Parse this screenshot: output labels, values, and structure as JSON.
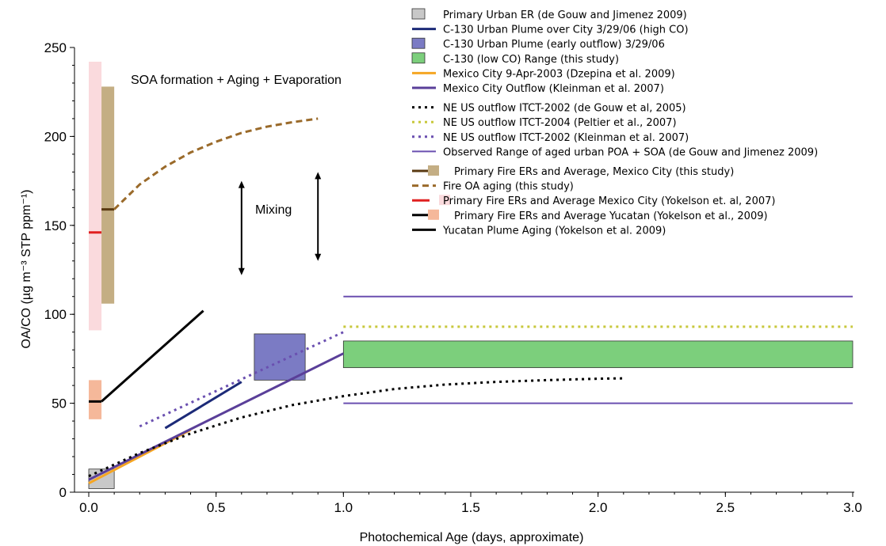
{
  "chart_data": {
    "type": "line",
    "xlabel": "Photochemical Age (days, approximate)",
    "ylabel": "OA/CO (µg m⁻³ STP ppm⁻¹)",
    "xlim": [
      0.0,
      3.0
    ],
    "ylim": [
      0,
      250
    ],
    "x_ticks": [
      "0.0",
      "0.5",
      "1.0",
      "1.5",
      "2.0",
      "2.5",
      "3.0"
    ],
    "y_ticks": [
      "0",
      "50",
      "100",
      "150",
      "200",
      "250"
    ],
    "annotations": {
      "soa": "SOA formation + Aging + Evaporation",
      "mixing": "Mixing"
    },
    "series": [
      {
        "id": "primary_urban_er",
        "name": "Primary Urban ER (de Gouw and Jimenez 2009)",
        "kind": "box",
        "x_range": [
          0.0,
          0.1
        ],
        "y_range": [
          2,
          13
        ],
        "color": "#c8c8c8"
      },
      {
        "id": "c130_over_city",
        "name": "C-130 Urban Plume  over City 3/29/06 (high CO)",
        "kind": "line",
        "x": [
          0.3,
          0.6
        ],
        "y": [
          36,
          62
        ],
        "color": "#1c2a78",
        "dash": "solid"
      },
      {
        "id": "c130_early_outflow",
        "name": "C-130 Urban Plume (early outflow) 3/29/06",
        "kind": "box",
        "x_range": [
          0.65,
          0.85
        ],
        "y_range": [
          63,
          89
        ],
        "color": "#7b7bc4"
      },
      {
        "id": "c130_low_co",
        "name": "C-130 (low CO) Range (this study)",
        "kind": "box",
        "x_range": [
          1.0,
          3.0
        ],
        "y_range": [
          70,
          85
        ],
        "color": "#7ccf7c"
      },
      {
        "id": "mexico_city_2003",
        "name": "Mexico City 9-Apr-2003 (Dzepina et al. 2009)",
        "kind": "line",
        "x": [
          0.0,
          0.4
        ],
        "y": [
          5,
          35
        ],
        "color": "#f5a623",
        "dash": "solid"
      },
      {
        "id": "mexico_city_outflow",
        "name": "Mexico City Outflow (Kleinman et al. 2007)",
        "kind": "line",
        "x": [
          0.0,
          1.0
        ],
        "y": [
          7,
          78
        ],
        "color": "#5a3f99",
        "dash": "solid"
      },
      {
        "id": "ne_us_2002_degouw",
        "name": "NE US outflow ITCT-2002 (de Gouw et al, 2005)",
        "kind": "line",
        "x": [
          0.0,
          0.2,
          0.4,
          0.6,
          0.8,
          1.0,
          1.2,
          1.4,
          1.6,
          1.8,
          2.0,
          2.1
        ],
        "y": [
          9,
          22,
          33,
          42,
          49,
          54,
          58,
          60.5,
          62,
          63,
          63.8,
          64
        ],
        "color": "#000000",
        "dash": "dotted"
      },
      {
        "id": "ne_us_2004_peltier",
        "name": "NE US outflow ITCT-2004 (Peltier et al., 2007)",
        "kind": "line",
        "x": [
          1.0,
          3.0
        ],
        "y": [
          93,
          93
        ],
        "color": "#c8c83c",
        "dash": "dotted"
      },
      {
        "id": "ne_us_2002_kleinman",
        "name": "NE US outflow ITCT-2002 (Kleinman et al. 2007)",
        "kind": "line",
        "x": [
          0.2,
          1.0
        ],
        "y": [
          37,
          90
        ],
        "color": "#6a4fb0",
        "dash": "dotted"
      },
      {
        "id": "aged_urban_range",
        "name": "Observed Range of aged urban POA + SOA (de Gouw and Jimenez 2009)",
        "kind": "range_lines",
        "x": [
          1.0,
          3.0
        ],
        "y": [
          50,
          110
        ],
        "color": "#6a4fb0"
      },
      {
        "id": "fire_er_mexico",
        "name": "Primary Fire ERs and Average, Mexico City (this study)",
        "kind": "box_avg",
        "x_range": [
          0.05,
          0.1
        ],
        "y_range": [
          106,
          228
        ],
        "avg": 159,
        "color": "#c4ae84",
        "avg_color": "#5a3a12"
      },
      {
        "id": "fire_oa_aging",
        "name": "Fire OA aging (this study)",
        "kind": "line",
        "x": [
          0.1,
          0.2,
          0.3,
          0.4,
          0.5,
          0.6,
          0.7,
          0.8,
          0.9
        ],
        "y": [
          159,
          173,
          183,
          191,
          197,
          202,
          205.5,
          208,
          210
        ],
        "color": "#9a6a2a",
        "dash": "dashed"
      },
      {
        "id": "fire_er_yokelson2007",
        "name": "Primary Fire ERs and Average Mexico City (Yokelson et. al, 2007)",
        "kind": "box_avg",
        "x_range": [
          0.0,
          0.05
        ],
        "y_range": [
          91,
          242
        ],
        "avg": 146,
        "color": "#fadadd",
        "avg_color": "#e02020"
      },
      {
        "id": "fire_er_yucatan",
        "name": " Primary Fire ERs and Average Yucatan (Yokelson et al., 2009)",
        "kind": "box_avg",
        "x_range": [
          0.0,
          0.05
        ],
        "y_range": [
          41,
          63
        ],
        "avg": 51,
        "color": "#f5b89a",
        "avg_color": "#000000"
      },
      {
        "id": "yucatan_aging",
        "name": "Yucatan Plume Aging (Yokelson et al. 2009)",
        "kind": "line",
        "x": [
          0.05,
          0.45
        ],
        "y": [
          51,
          102
        ],
        "color": "#000000",
        "dash": "solid"
      }
    ],
    "arrows": [
      {
        "x": 0.6,
        "y": [
          122,
          175
        ]
      },
      {
        "x": 0.9,
        "y": [
          130,
          180
        ]
      }
    ],
    "legend": {
      "placement": "top-right"
    }
  }
}
